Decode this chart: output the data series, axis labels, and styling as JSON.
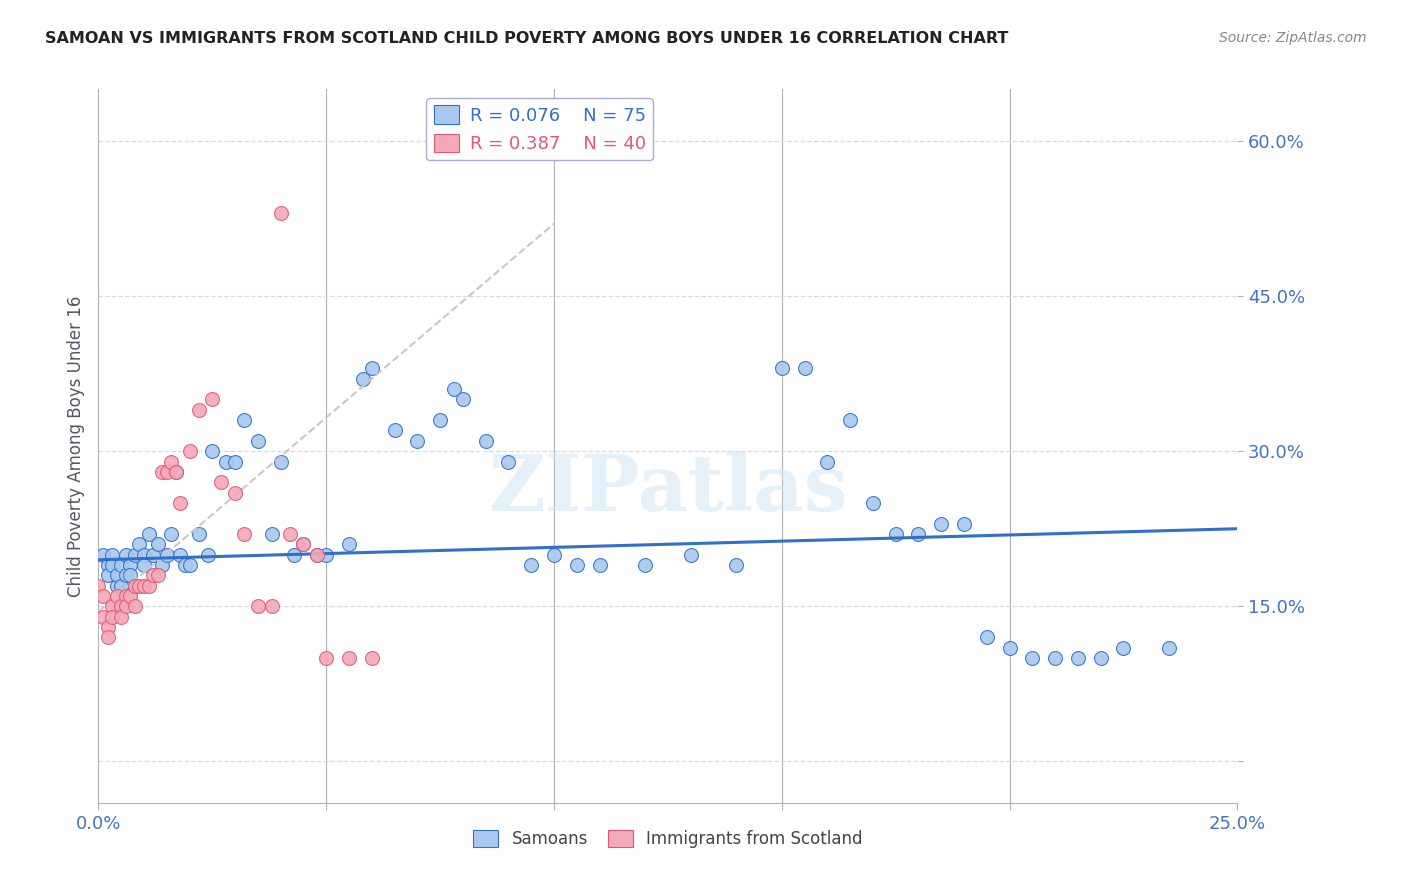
{
  "title": "SAMOAN VS IMMIGRANTS FROM SCOTLAND CHILD POVERTY AMONG BOYS UNDER 16 CORRELATION CHART",
  "source": "Source: ZipAtlas.com",
  "ylabel": "Child Poverty Among Boys Under 16",
  "yticks": [
    0.0,
    0.15,
    0.3,
    0.45,
    0.6
  ],
  "ytick_labels": [
    "",
    "15.0%",
    "30.0%",
    "45.0%",
    "60.0%"
  ],
  "xlim": [
    0.0,
    0.25
  ],
  "ylim": [
    -0.04,
    0.65
  ],
  "legend_blue_r": "R = 0.076",
  "legend_blue_n": "N = 75",
  "legend_pink_r": "R = 0.387",
  "legend_pink_n": "N = 40",
  "blue_color": "#A8C8F0",
  "pink_color": "#F4A8B8",
  "line_blue": "#3070C8",
  "line_pink": "#E05878",
  "trend_line_color": "#C8C8C8",
  "title_color": "#222222",
  "axis_label_color": "#4472C4",
  "background_color": "#FFFFFF",
  "blue_scatter_x": [
    0.001,
    0.002,
    0.002,
    0.003,
    0.003,
    0.004,
    0.004,
    0.005,
    0.005,
    0.006,
    0.006,
    0.007,
    0.007,
    0.008,
    0.008,
    0.009,
    0.01,
    0.01,
    0.011,
    0.012,
    0.013,
    0.014,
    0.015,
    0.016,
    0.017,
    0.018,
    0.019,
    0.02,
    0.022,
    0.024,
    0.025,
    0.028,
    0.03,
    0.032,
    0.035,
    0.038,
    0.04,
    0.043,
    0.045,
    0.048,
    0.05,
    0.055,
    0.058,
    0.06,
    0.065,
    0.07,
    0.075,
    0.078,
    0.08,
    0.085,
    0.09,
    0.095,
    0.1,
    0.105,
    0.11,
    0.12,
    0.13,
    0.14,
    0.15,
    0.155,
    0.16,
    0.165,
    0.17,
    0.175,
    0.18,
    0.185,
    0.19,
    0.195,
    0.2,
    0.205,
    0.21,
    0.215,
    0.22,
    0.225,
    0.235
  ],
  "blue_scatter_y": [
    0.2,
    0.19,
    0.18,
    0.2,
    0.19,
    0.17,
    0.18,
    0.17,
    0.19,
    0.18,
    0.2,
    0.19,
    0.18,
    0.2,
    0.17,
    0.21,
    0.2,
    0.19,
    0.22,
    0.2,
    0.21,
    0.19,
    0.2,
    0.22,
    0.28,
    0.2,
    0.19,
    0.19,
    0.22,
    0.2,
    0.3,
    0.29,
    0.29,
    0.33,
    0.31,
    0.22,
    0.29,
    0.2,
    0.21,
    0.2,
    0.2,
    0.21,
    0.37,
    0.38,
    0.32,
    0.31,
    0.33,
    0.36,
    0.35,
    0.31,
    0.29,
    0.19,
    0.2,
    0.19,
    0.19,
    0.19,
    0.2,
    0.19,
    0.38,
    0.38,
    0.29,
    0.33,
    0.25,
    0.22,
    0.22,
    0.23,
    0.23,
    0.12,
    0.11,
    0.1,
    0.1,
    0.1,
    0.1,
    0.11,
    0.11
  ],
  "pink_scatter_x": [
    0.0,
    0.001,
    0.001,
    0.002,
    0.002,
    0.003,
    0.003,
    0.004,
    0.005,
    0.005,
    0.006,
    0.006,
    0.007,
    0.008,
    0.008,
    0.009,
    0.01,
    0.011,
    0.012,
    0.013,
    0.014,
    0.015,
    0.016,
    0.017,
    0.018,
    0.02,
    0.022,
    0.025,
    0.027,
    0.03,
    0.032,
    0.035,
    0.038,
    0.04,
    0.042,
    0.045,
    0.048,
    0.05,
    0.055,
    0.06
  ],
  "pink_scatter_y": [
    0.17,
    0.16,
    0.14,
    0.13,
    0.12,
    0.15,
    0.14,
    0.16,
    0.15,
    0.14,
    0.16,
    0.15,
    0.16,
    0.17,
    0.15,
    0.17,
    0.17,
    0.17,
    0.18,
    0.18,
    0.28,
    0.28,
    0.29,
    0.28,
    0.25,
    0.3,
    0.34,
    0.35,
    0.27,
    0.26,
    0.22,
    0.15,
    0.15,
    0.53,
    0.22,
    0.21,
    0.2,
    0.1,
    0.1,
    0.1
  ],
  "blue_trend_x": [
    0.0,
    0.25
  ],
  "blue_trend_y": [
    0.195,
    0.225
  ],
  "pink_trend_x": [
    0.0,
    0.1
  ],
  "pink_trend_y": [
    0.145,
    0.52
  ],
  "watermark_text": "ZIPatlas",
  "marker_size": 100,
  "grid_color": "#D8D8E8",
  "tick_color": "#B0B0B8"
}
